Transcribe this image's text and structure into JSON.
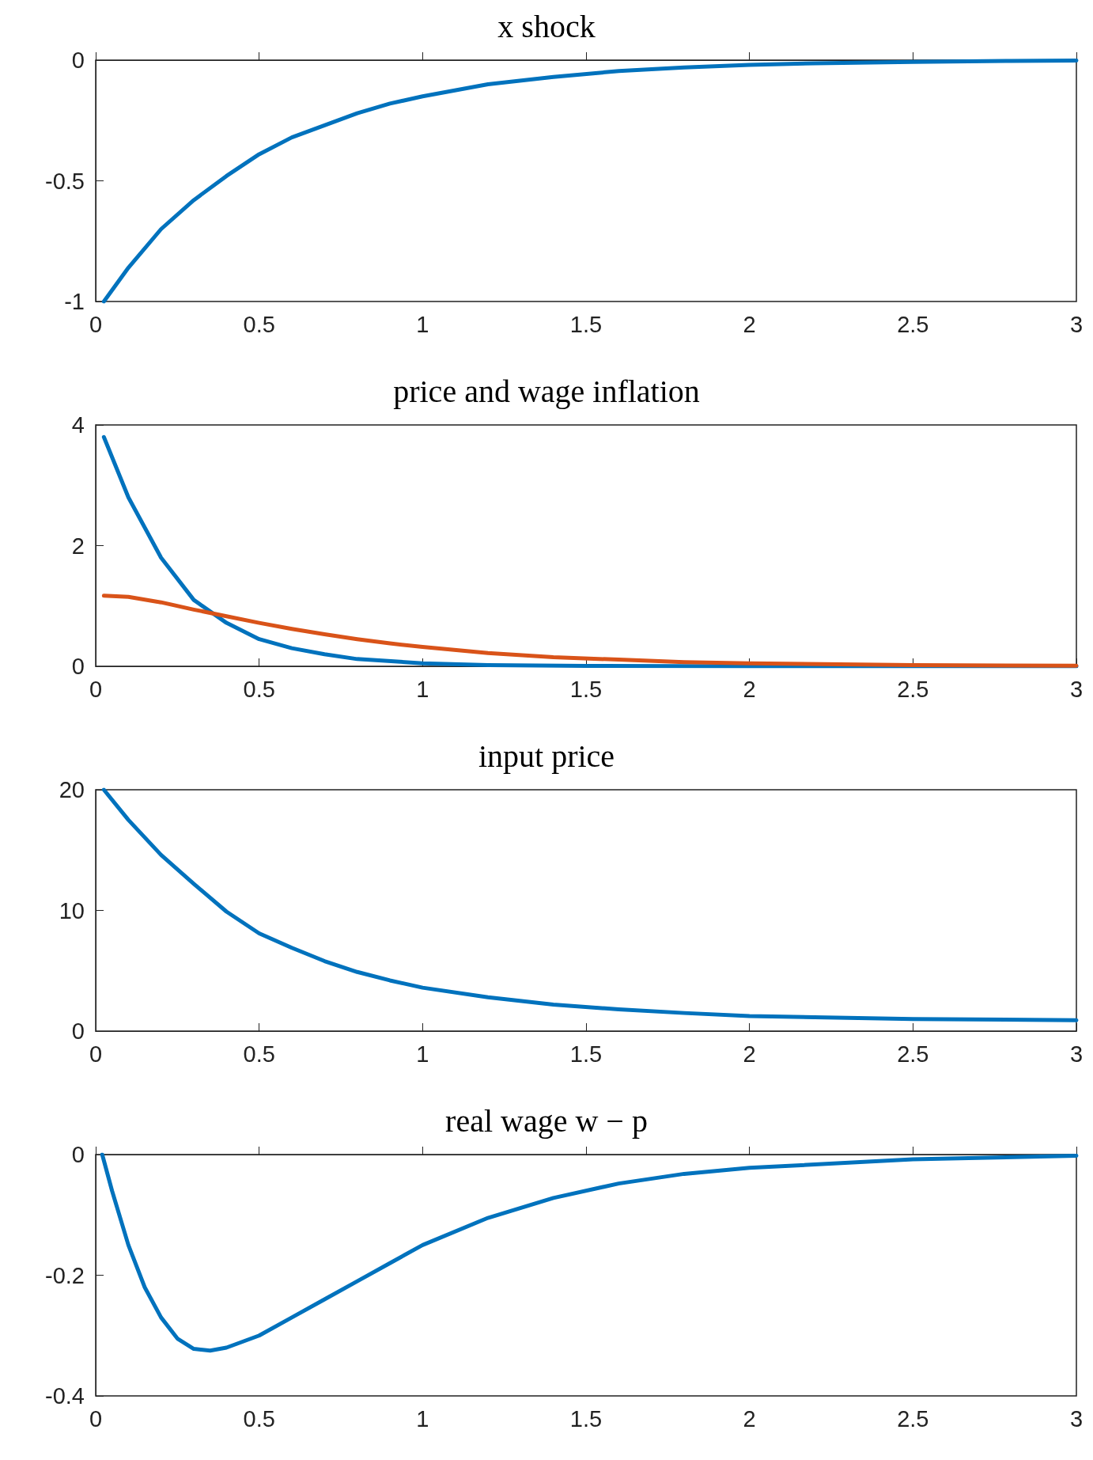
{
  "chart_data": [
    {
      "type": "line",
      "title": "x shock",
      "xlim": [
        0,
        3
      ],
      "xticks": [
        0,
        0.5,
        1,
        1.5,
        2,
        2.5,
        3
      ],
      "ylim": [
        -1,
        0
      ],
      "yticks": [
        -1,
        -0.5,
        0
      ],
      "series": [
        {
          "color": "#0072bd",
          "x": [
            0.025,
            0.1,
            0.2,
            0.3,
            0.4,
            0.5,
            0.6,
            0.7,
            0.8,
            0.9,
            1.0,
            1.2,
            1.4,
            1.6,
            1.8,
            2.0,
            2.2,
            2.5,
            2.8,
            3
          ],
          "values": [
            -1,
            -0.86,
            -0.7,
            -0.58,
            -0.48,
            -0.39,
            -0.32,
            -0.27,
            -0.22,
            -0.18,
            -0.15,
            -0.1,
            -0.07,
            -0.045,
            -0.03,
            -0.02,
            -0.013,
            -0.007,
            -0.003,
            -0.002
          ]
        }
      ]
    },
    {
      "type": "line",
      "title": "price and wage inflation",
      "xlim": [
        0,
        3
      ],
      "xticks": [
        0,
        0.5,
        1,
        1.5,
        2,
        2.5,
        3
      ],
      "ylim": [
        0,
        4
      ],
      "yticks": [
        0,
        2,
        4
      ],
      "series": [
        {
          "color": "#0072bd",
          "x": [
            0.025,
            0.1,
            0.2,
            0.3,
            0.4,
            0.5,
            0.6,
            0.7,
            0.8,
            1.0,
            1.2,
            1.5,
            2,
            3
          ],
          "values": [
            3.8,
            2.8,
            1.8,
            1.1,
            0.72,
            0.45,
            0.3,
            0.2,
            0.12,
            0.05,
            0.02,
            0.006,
            0.001,
            0
          ]
        },
        {
          "color": "#d95319",
          "x": [
            0.025,
            0.1,
            0.2,
            0.3,
            0.4,
            0.5,
            0.6,
            0.7,
            0.8,
            0.9,
            1.0,
            1.2,
            1.4,
            1.6,
            1.8,
            2.0,
            2.5,
            3
          ],
          "values": [
            1.17,
            1.15,
            1.06,
            0.94,
            0.83,
            0.72,
            0.62,
            0.53,
            0.45,
            0.38,
            0.32,
            0.22,
            0.15,
            0.11,
            0.07,
            0.05,
            0.02,
            0.01
          ]
        }
      ]
    },
    {
      "type": "line",
      "title": "input price",
      "xlim": [
        0,
        3
      ],
      "xticks": [
        0,
        0.5,
        1,
        1.5,
        2,
        2.5,
        3
      ],
      "ylim": [
        0,
        20
      ],
      "yticks": [
        0,
        10,
        20
      ],
      "series": [
        {
          "color": "#0072bd",
          "x": [
            0.025,
            0.1,
            0.2,
            0.3,
            0.4,
            0.5,
            0.6,
            0.7,
            0.8,
            0.9,
            1.0,
            1.2,
            1.4,
            1.6,
            1.8,
            2.0,
            2.5,
            3
          ],
          "values": [
            20,
            17.5,
            14.6,
            12.2,
            9.9,
            8.1,
            6.9,
            5.8,
            4.9,
            4.2,
            3.6,
            2.8,
            2.2,
            1.8,
            1.5,
            1.25,
            1.0,
            0.9
          ]
        }
      ]
    },
    {
      "type": "line",
      "title": "real wage w − p",
      "xlim": [
        0,
        3
      ],
      "xticks": [
        0,
        0.5,
        1,
        1.5,
        2,
        2.5,
        3
      ],
      "ylim": [
        -0.4,
        0
      ],
      "yticks": [
        -0.4,
        -0.2,
        0
      ],
      "series": [
        {
          "color": "#0072bd",
          "x": [
            0.02,
            0.05,
            0.1,
            0.15,
            0.2,
            0.25,
            0.3,
            0.35,
            0.4,
            0.5,
            0.6,
            0.7,
            0.8,
            0.9,
            1.0,
            1.2,
            1.4,
            1.6,
            1.8,
            2.0,
            2.5,
            3
          ],
          "values": [
            0,
            -0.06,
            -0.15,
            -0.22,
            -0.27,
            -0.305,
            -0.322,
            -0.325,
            -0.32,
            -0.3,
            -0.27,
            -0.24,
            -0.21,
            -0.18,
            -0.15,
            -0.105,
            -0.072,
            -0.048,
            -0.032,
            -0.022,
            -0.008,
            -0.002
          ]
        }
      ]
    }
  ]
}
